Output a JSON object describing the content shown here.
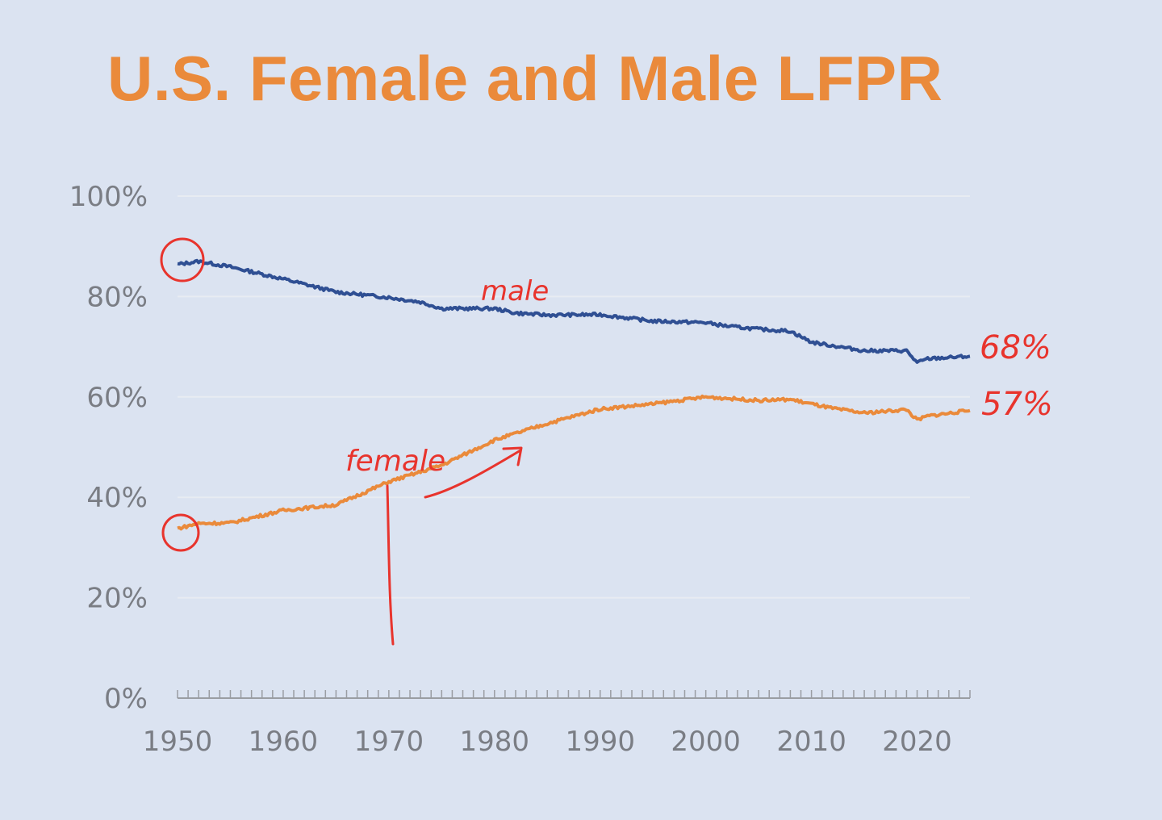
{
  "colors": {
    "background": "#dbe3f1",
    "title": "#ea8a3b",
    "male": "#2f4f93",
    "female": "#ea8a3b",
    "grid": "#e8ecf2",
    "axis_text": "#7a7d84",
    "annotation": "#e8342d"
  },
  "chart_data": {
    "type": "line",
    "title": "U.S. Female and Male LFPR",
    "xlabel": "",
    "ylabel": "",
    "xlim": [
      1950,
      2025
    ],
    "ylim": [
      0,
      100
    ],
    "grid": true,
    "xticks": [
      1950,
      1960,
      1970,
      1980,
      1990,
      2000,
      2010,
      2020
    ],
    "xtick_labels": [
      "1950",
      "1960",
      "1970",
      "1980",
      "1990",
      "2000",
      "2010",
      "2020"
    ],
    "yticks": [
      0,
      20,
      40,
      60,
      80,
      100
    ],
    "ytick_labels": [
      "0%",
      "20%",
      "40%",
      "60%",
      "80%",
      "100%"
    ],
    "series": [
      {
        "name": "Male",
        "x": [
          1950,
          1952,
          1955,
          1960,
          1965,
          1970,
          1973,
          1975,
          1980,
          1982,
          1985,
          1990,
          1995,
          2000,
          2002,
          2005,
          2008,
          2010,
          2012,
          2015,
          2019,
          2020,
          2021,
          2025
        ],
        "values": [
          86.4,
          87,
          85.9,
          83.5,
          80.9,
          79.8,
          78.9,
          77.6,
          77.6,
          76.7,
          76.3,
          76.4,
          75.1,
          74.8,
          74.1,
          73.5,
          73.1,
          70.9,
          70.2,
          69.2,
          69.2,
          66.8,
          67.6,
          68.1
        ]
      },
      {
        "name": "Female",
        "x": [
          1950,
          1952,
          1955,
          1960,
          1965,
          1970,
          1975,
          1980,
          1985,
          1990,
          1995,
          2000,
          2005,
          2008,
          2010,
          2012,
          2015,
          2019,
          2020,
          2021,
          2025
        ],
        "values": [
          33.8,
          34.8,
          34.9,
          37.4,
          38.5,
          43.1,
          46.4,
          51.4,
          54.7,
          57.6,
          58.6,
          60,
          59.3,
          59.5,
          58.6,
          57.7,
          56.8,
          57.5,
          55.4,
          56.2,
          57.3
        ]
      }
    ],
    "annotations": {
      "male_label": "male",
      "female_label": "female",
      "male_end": "68%",
      "female_end": "57%"
    }
  }
}
